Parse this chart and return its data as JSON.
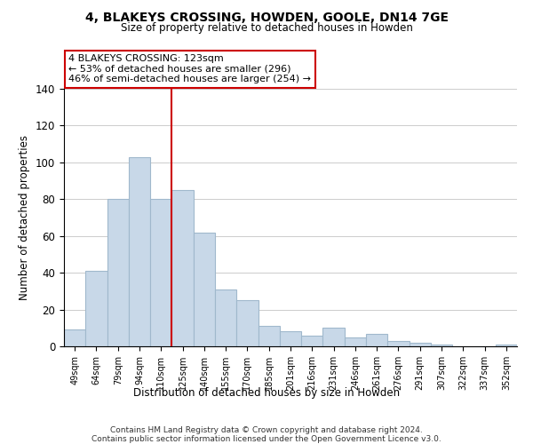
{
  "title": "4, BLAKEYS CROSSING, HOWDEN, GOOLE, DN14 7GE",
  "subtitle": "Size of property relative to detached houses in Howden",
  "xlabel": "Distribution of detached houses by size in Howden",
  "ylabel": "Number of detached properties",
  "bar_labels": [
    "49sqm",
    "64sqm",
    "79sqm",
    "94sqm",
    "110sqm",
    "125sqm",
    "140sqm",
    "155sqm",
    "170sqm",
    "185sqm",
    "201sqm",
    "216sqm",
    "231sqm",
    "246sqm",
    "261sqm",
    "276sqm",
    "291sqm",
    "307sqm",
    "322sqm",
    "337sqm",
    "352sqm"
  ],
  "bar_values": [
    9,
    41,
    80,
    103,
    80,
    85,
    62,
    31,
    25,
    11,
    8,
    6,
    10,
    5,
    7,
    3,
    2,
    1,
    0,
    0,
    1
  ],
  "bar_color": "#c8d8e8",
  "bar_edge_color": "#a0b8cc",
  "vline_x_index": 5,
  "vline_color": "#cc0000",
  "annotation_title": "4 BLAKEYS CROSSING: 123sqm",
  "annotation_line1": "← 53% of detached houses are smaller (296)",
  "annotation_line2": "46% of semi-detached houses are larger (254) →",
  "annotation_box_color": "#ffffff",
  "annotation_box_edge": "#cc0000",
  "ylim": [
    0,
    140
  ],
  "yticks": [
    0,
    20,
    40,
    60,
    80,
    100,
    120,
    140
  ],
  "footer1": "Contains HM Land Registry data © Crown copyright and database right 2024.",
  "footer2": "Contains public sector information licensed under the Open Government Licence v3.0."
}
